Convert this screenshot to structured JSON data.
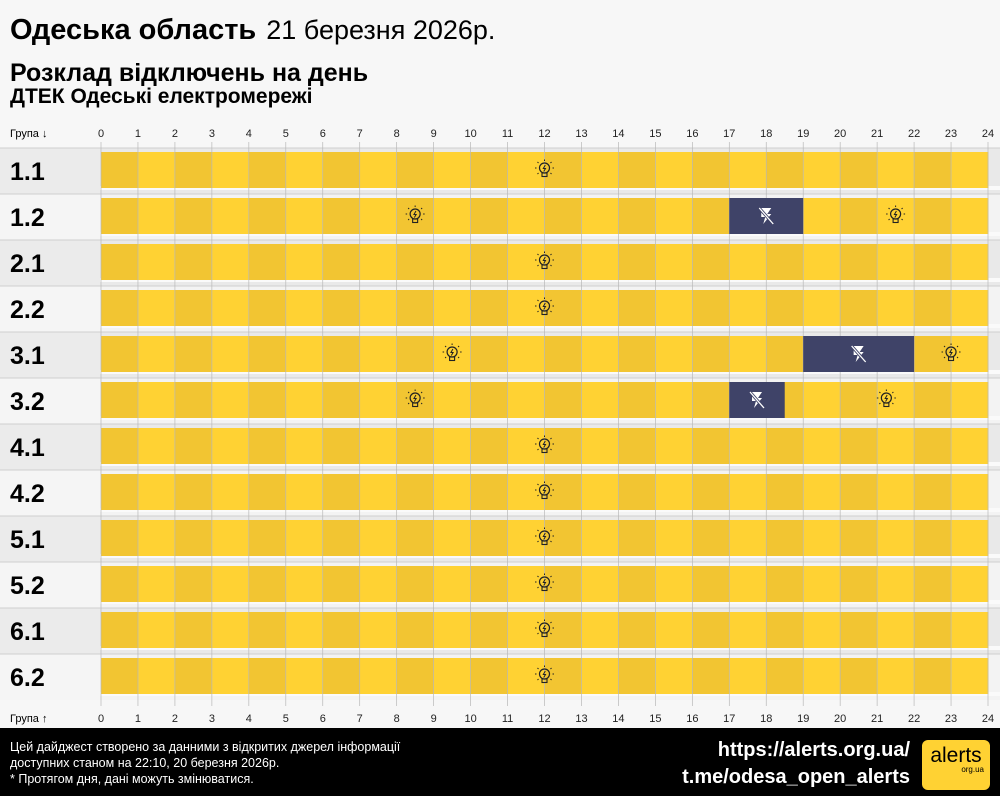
{
  "header": {
    "region": "Одеська область",
    "date": "21 березня 2026р.",
    "subtitle": "Розклад відключень на день",
    "provider": "ДТЕК Одеські електромережі"
  },
  "axis": {
    "top_label": "Група ↓",
    "bottom_label": "Група ↑",
    "hours": [
      "0",
      "1",
      "2",
      "3",
      "4",
      "5",
      "6",
      "7",
      "8",
      "9",
      "10",
      "11",
      "12",
      "13",
      "14",
      "15",
      "16",
      "17",
      "18",
      "19",
      "20",
      "21",
      "22",
      "23",
      "24"
    ]
  },
  "colors": {
    "power_on_even": "#f2c532",
    "power_on_odd": "#ffd233",
    "outage": "#3f4368",
    "label_bg_a": "#ebebeb",
    "label_bg_b": "#f5f5f5"
  },
  "groups": [
    {
      "name": "1.1",
      "outages": []
    },
    {
      "name": "1.2",
      "outages": [
        [
          17,
          19
        ]
      ]
    },
    {
      "name": "2.1",
      "outages": []
    },
    {
      "name": "2.2",
      "outages": []
    },
    {
      "name": "3.1",
      "outages": [
        [
          19,
          22
        ]
      ]
    },
    {
      "name": "3.2",
      "outages": [
        [
          17,
          18.5
        ]
      ]
    },
    {
      "name": "4.1",
      "outages": []
    },
    {
      "name": "4.2",
      "outages": []
    },
    {
      "name": "5.1",
      "outages": []
    },
    {
      "name": "5.2",
      "outages": []
    },
    {
      "name": "6.1",
      "outages": []
    },
    {
      "name": "6.2",
      "outages": []
    }
  ],
  "icons": {
    "power_on": "lightbulb-icon",
    "outage": "no-power-icon"
  },
  "footer": {
    "note_line1": "Цей дайджест створено за данними з відкритих джерел інформації",
    "note_line2": "доступних станом на 22:10, 20 березня 2026р.",
    "note_line3": "* Протягом дня, дані можуть змінюватися.",
    "website": "https://alerts.org.ua/",
    "telegram": "t.me/odesa_open_alerts",
    "logo_text": "alerts",
    "logo_sub": "org.ua"
  }
}
